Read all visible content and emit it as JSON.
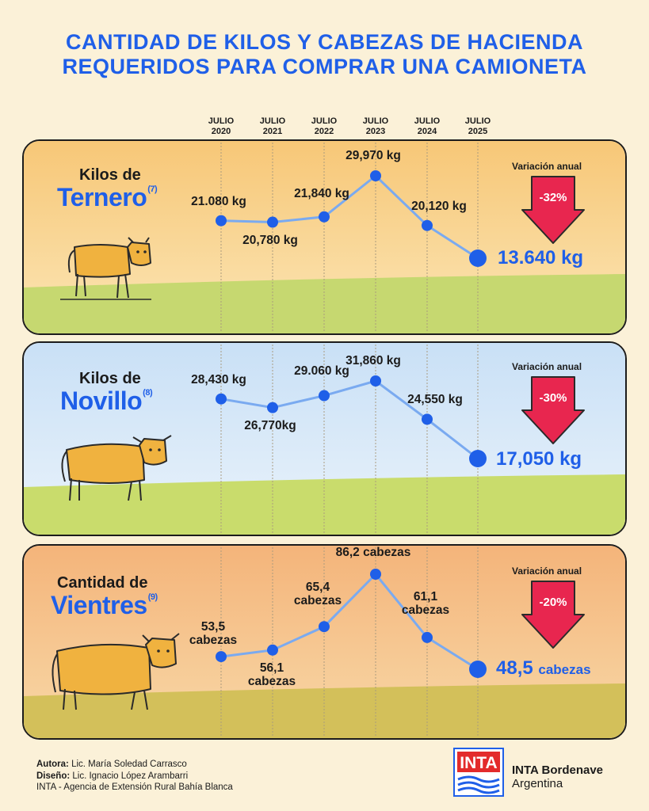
{
  "title_line1": "CANTIDAD DE KILOS Y CABEZAS DE HACIENDA",
  "title_line2": "REQUERIDOS PARA COMPRAR UNA CAMIONETA",
  "year_headers": [
    {
      "line1": "JULIO",
      "line2": "2020"
    },
    {
      "line1": "JULIO",
      "line2": "2021"
    },
    {
      "line1": "JULIO",
      "line2": "2022"
    },
    {
      "line1": "JULIO",
      "line2": "2023"
    },
    {
      "line1": "JULIO",
      "line2": "2024"
    },
    {
      "line1": "JULIO",
      "line2": "2025"
    }
  ],
  "colors": {
    "accent_blue": "#1f5fe8",
    "line_blue": "#7aaaf0",
    "arrow_red": "#e8264f",
    "panel1_sky": "#f7ce84",
    "panel2_sky": "#d3e7f8",
    "panel3_sky": "#f6be86",
    "grass": "#c6d870",
    "cow": "#f0b23f"
  },
  "panels": [
    {
      "title_line1": "Kilos de",
      "title_line2": "Ternero",
      "note": "(7)",
      "variation_header": "Variación anual",
      "variation": "-32%",
      "final_value": "13.640 kg",
      "labels": [
        {
          "l1": "21.080 kg",
          "l2": ""
        },
        {
          "l1": "20,780 kg",
          "l2": ""
        },
        {
          "l1": "21,840 kg",
          "l2": ""
        },
        {
          "l1": "29,970 kg",
          "l2": ""
        },
        {
          "l1": "20,120 kg",
          "l2": ""
        }
      ]
    },
    {
      "title_line1": "Kilos de",
      "title_line2": "Novillo",
      "note": "(8)",
      "variation_header": "Variación anual",
      "variation": "-30%",
      "final_value": "17,050 kg",
      "labels": [
        {
          "l1": "28,430 kg",
          "l2": ""
        },
        {
          "l1": "26,770kg",
          "l2": ""
        },
        {
          "l1": "29.060 kg",
          "l2": ""
        },
        {
          "l1": "31,860 kg",
          "l2": ""
        },
        {
          "l1": "24,550 kg",
          "l2": ""
        }
      ]
    },
    {
      "title_line1": "Cantidad de",
      "title_line2": "Vientres",
      "note": "(9)",
      "variation_header": "Variación anual",
      "variation": "-20%",
      "final_value": "48,5",
      "final_unit": "cabezas",
      "labels": [
        {
          "l1": "53,5",
          "l2": "cabezas"
        },
        {
          "l1": "56,1",
          "l2": "cabezas"
        },
        {
          "l1": "65,4",
          "l2": "cabezas"
        },
        {
          "l1": "86,2 cabezas",
          "l2": ""
        },
        {
          "l1": "61,1",
          "l2": "cabezas"
        }
      ]
    }
  ],
  "chart_data": [
    {
      "type": "line",
      "title": "Kilos de Ternero",
      "categories": [
        "JULIO 2020",
        "JULIO 2021",
        "JULIO 2022",
        "JULIO 2023",
        "JULIO 2024",
        "JULIO 2025"
      ],
      "values": [
        21080,
        20780,
        21840,
        29970,
        20120,
        13640
      ],
      "unit": "kg",
      "annotation": "Variación anual -32%"
    },
    {
      "type": "line",
      "title": "Kilos de Novillo",
      "categories": [
        "JULIO 2020",
        "JULIO 2021",
        "JULIO 2022",
        "JULIO 2023",
        "JULIO 2024",
        "JULIO 2025"
      ],
      "values": [
        28430,
        26770,
        29060,
        31860,
        24550,
        17050
      ],
      "unit": "kg",
      "annotation": "Variación anual -30%"
    },
    {
      "type": "line",
      "title": "Cantidad de Vientres",
      "categories": [
        "JULIO 2020",
        "JULIO 2021",
        "JULIO 2022",
        "JULIO 2023",
        "JULIO 2024",
        "JULIO 2025"
      ],
      "values": [
        53.5,
        56.1,
        65.4,
        86.2,
        61.1,
        48.5
      ],
      "unit": "cabezas",
      "annotation": "Variación anual -20%"
    }
  ],
  "footer": {
    "author_label": "Autora:",
    "author": "Lic. María Soledad Carrasco",
    "design_label": "Diseño:",
    "design": "Lic. Ignacio López Arambarri",
    "agency": "INTA - Agencia de Extensión Rural Bahía Blanca"
  },
  "logo_text": "INTA",
  "org_line1": "INTA Bordenave",
  "org_line2": "Argentina"
}
